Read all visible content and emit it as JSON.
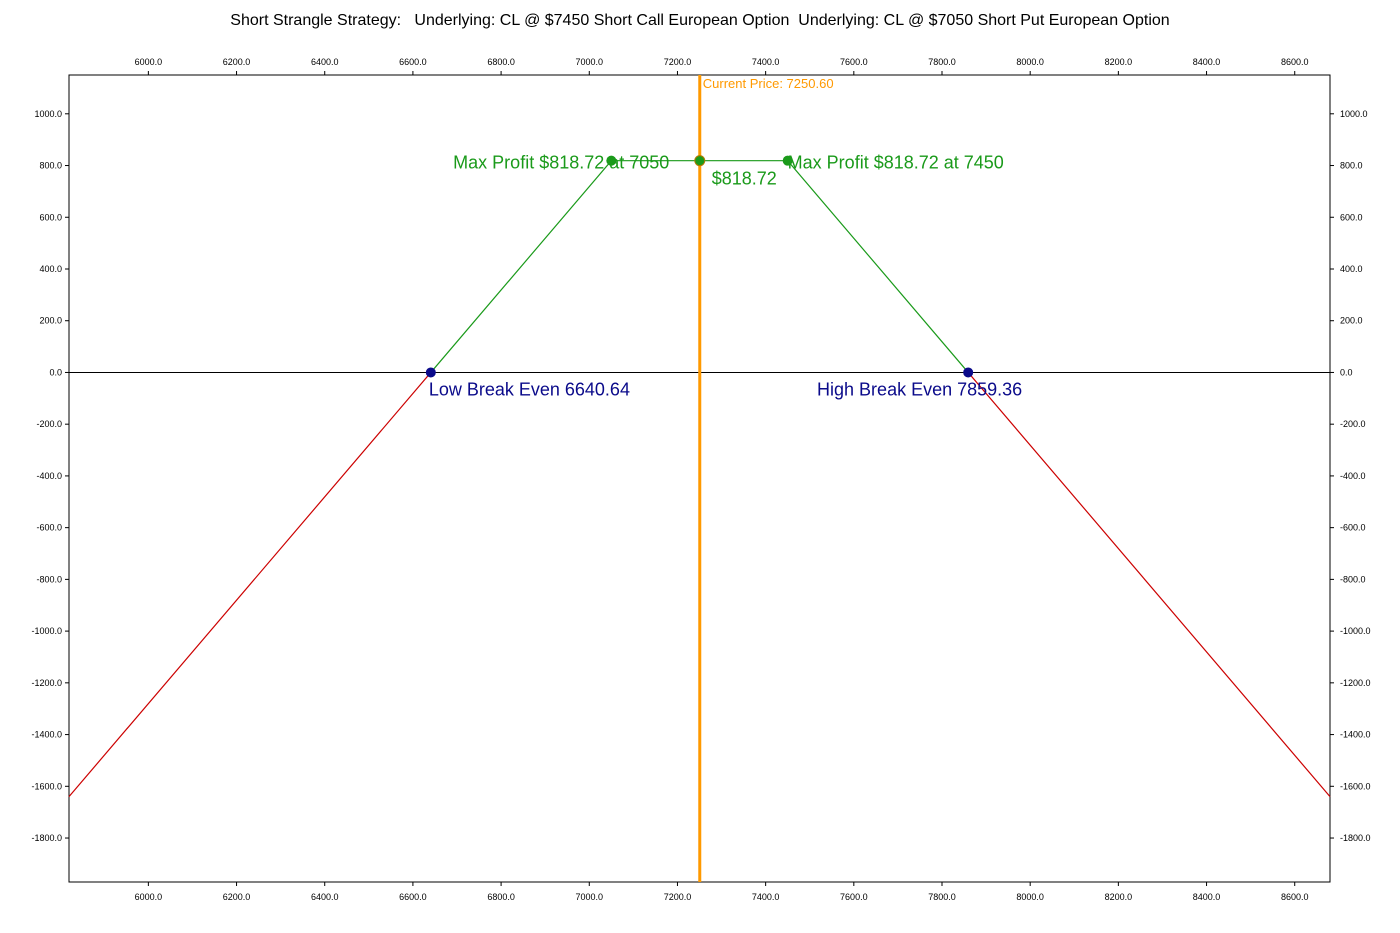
{
  "chart_data": {
    "type": "line",
    "title": "Short Strangle Strategy:   Underlying: CL @ $7450 Short Call European Option  Underlying: CL @ $7050 Short Put European Option",
    "xlim": [
      5820,
      8680
    ],
    "ylim": [
      -1970,
      1150
    ],
    "x_ticks": [
      6000,
      6200,
      6400,
      6600,
      6800,
      7000,
      7200,
      7400,
      7600,
      7800,
      8000,
      8200,
      8400,
      8600
    ],
    "x_tick_labels": [
      "6000.0",
      "6200.0",
      "6400.0",
      "6600.0",
      "6800.0",
      "7000.0",
      "7200.0",
      "7400.0",
      "7600.0",
      "7800.0",
      "8000.0",
      "8200.0",
      "8400.0",
      "8600.0"
    ],
    "y_ticks": [
      1000,
      800,
      600,
      400,
      200,
      0,
      -200,
      -400,
      -600,
      -800,
      -1000,
      -1200,
      -1400,
      -1600,
      -1800
    ],
    "y_tick_labels": [
      "1000.0",
      "800.0",
      "600.0",
      "400.0",
      "200.0",
      "0.0",
      "-200.0",
      "-400.0",
      "-600.0",
      "-800.0",
      "-1000.0",
      "-1200.0",
      "-1400.0",
      "-1600.0",
      "-1800.0"
    ],
    "grid": false,
    "payoff": {
      "loss_left": [
        [
          5820,
          -1640
        ],
        [
          6640.64,
          0
        ]
      ],
      "profit": [
        [
          6640.64,
          0
        ],
        [
          7050,
          818.72
        ],
        [
          7450,
          818.72
        ],
        [
          7859.36,
          0
        ]
      ],
      "loss_right": [
        [
          7859.36,
          0
        ],
        [
          8680,
          -1640
        ]
      ]
    },
    "colors": {
      "profit": "#1a9a1a",
      "loss": "#cc0000",
      "breakeven": "#0a0a8a",
      "current_price": "#ff9900",
      "axis": "#000000"
    },
    "current_price": {
      "x": 7250.6,
      "label": "Current Price: 7250.60"
    },
    "points": {
      "max_profit_left": {
        "x": 7050,
        "y": 818.72,
        "label": "Max Profit $818.72 at 7050"
      },
      "max_profit_right": {
        "x": 7450,
        "y": 818.72,
        "label": "Max Profit $818.72 at 7450"
      },
      "current_value": {
        "x": 7250.6,
        "y": 818.72,
        "label": "$818.72"
      },
      "low_break_even": {
        "x": 6640.64,
        "y": 0,
        "label": "Low Break Even  6640.64"
      },
      "high_break_even": {
        "x": 7859.36,
        "y": 0,
        "label": "High Break Even  7859.36"
      }
    }
  }
}
